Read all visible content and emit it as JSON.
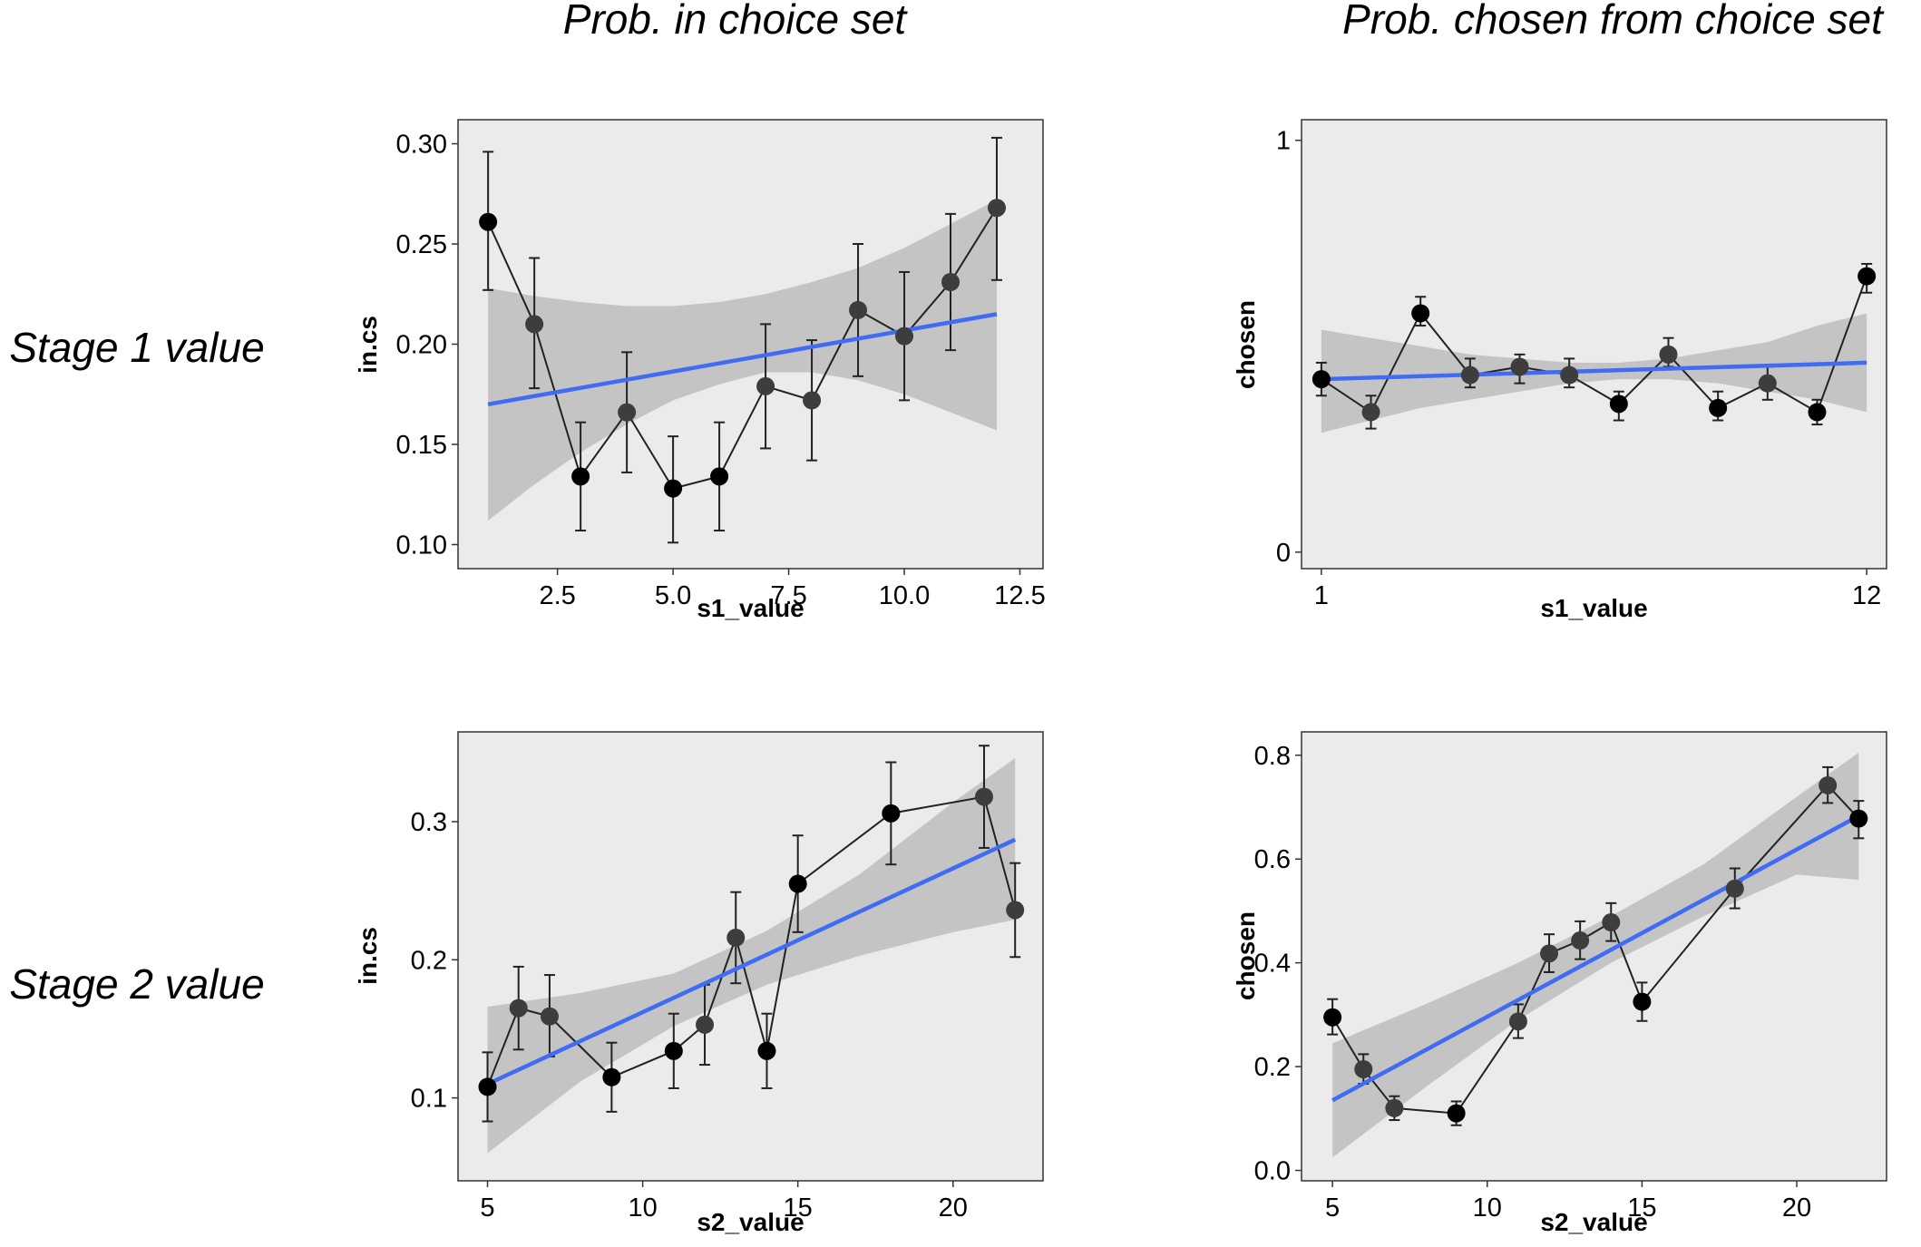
{
  "column_titles": [
    "Prob. in choice set",
    "Prob. chosen from choice set"
  ],
  "row_titles": [
    "Stage 1 value",
    "Stage 2 value"
  ],
  "chart_data": [
    {
      "type": "line",
      "xlabel": "s1_value",
      "ylabel": "in.cs",
      "xlim": [
        0.35,
        13.0
      ],
      "ylim": [
        0.088,
        0.312
      ],
      "xticks": [
        2.5,
        5.0,
        7.5,
        10.0,
        12.5
      ],
      "xtick_labels": [
        "2.5",
        "5.0",
        "7.5",
        "10.0",
        "12.5"
      ],
      "yticks": [
        0.1,
        0.15,
        0.2,
        0.25,
        0.3
      ],
      "ytick_labels": [
        "0.10",
        "0.15",
        "0.20",
        "0.25",
        "0.30"
      ],
      "x": [
        1,
        2,
        3,
        4,
        5,
        6,
        7,
        8,
        9,
        10,
        11,
        12
      ],
      "y": [
        0.261,
        0.21,
        0.134,
        0.166,
        0.128,
        0.134,
        0.179,
        0.172,
        0.217,
        0.204,
        0.231,
        0.268
      ],
      "err_low": [
        0.227,
        0.178,
        0.107,
        0.136,
        0.101,
        0.107,
        0.148,
        0.142,
        0.184,
        0.172,
        0.197,
        0.232
      ],
      "err_high": [
        0.296,
        0.243,
        0.161,
        0.196,
        0.154,
        0.161,
        0.21,
        0.202,
        0.25,
        0.236,
        0.265,
        0.303
      ],
      "point_colors": [
        "#000000",
        "#3d3d3d",
        "#000000",
        "#3d3d3d",
        "#000000",
        "#000000",
        "#3d3d3d",
        "#3d3d3d",
        "#3d3d3d",
        "#3d3d3d",
        "#3d3d3d",
        "#3d3d3d"
      ],
      "fit": {
        "x": [
          1,
          12
        ],
        "y": [
          0.17,
          0.215
        ]
      },
      "band": {
        "x": [
          1,
          2,
          3,
          4,
          5,
          6,
          7,
          8,
          9,
          10,
          11,
          12
        ],
        "low": [
          0.112,
          0.13,
          0.146,
          0.16,
          0.172,
          0.18,
          0.186,
          0.186,
          0.182,
          0.175,
          0.166,
          0.157
        ],
        "high": [
          0.228,
          0.224,
          0.221,
          0.219,
          0.219,
          0.221,
          0.225,
          0.231,
          0.238,
          0.248,
          0.26,
          0.272
        ]
      },
      "grid": false
    },
    {
      "type": "line",
      "xlabel": "s1_value",
      "ylabel": "chosen",
      "xlim": [
        0.6,
        12.4
      ],
      "ylim": [
        -0.04,
        1.05
      ],
      "xticks": [
        1,
        12
      ],
      "xtick_labels": [
        "1",
        "12"
      ],
      "yticks": [
        0,
        1
      ],
      "ytick_labels": [
        "0",
        "1"
      ],
      "x": [
        1,
        2,
        3,
        4,
        5,
        6,
        7,
        8,
        9,
        10,
        11,
        12
      ],
      "y": [
        0.42,
        0.34,
        0.58,
        0.43,
        0.45,
        0.43,
        0.36,
        0.48,
        0.35,
        0.41,
        0.34,
        0.67
      ],
      "err_low": [
        0.38,
        0.3,
        0.55,
        0.4,
        0.41,
        0.4,
        0.32,
        0.45,
        0.32,
        0.37,
        0.31,
        0.63
      ],
      "err_high": [
        0.46,
        0.38,
        0.62,
        0.47,
        0.48,
        0.47,
        0.39,
        0.52,
        0.39,
        0.45,
        0.37,
        0.7
      ],
      "point_colors": [
        "#000000",
        "#3d3d3d",
        "#000000",
        "#3d3d3d",
        "#3d3d3d",
        "#3d3d3d",
        "#000000",
        "#3d3d3d",
        "#000000",
        "#3d3d3d",
        "#000000",
        "#000000"
      ],
      "fit": {
        "x": [
          1,
          12
        ],
        "y": [
          0.42,
          0.46
        ]
      },
      "band": {
        "x": [
          1,
          2,
          3,
          4,
          5,
          6,
          7,
          8,
          9,
          10,
          11,
          12
        ],
        "low": [
          0.29,
          0.32,
          0.35,
          0.37,
          0.39,
          0.41,
          0.42,
          0.42,
          0.41,
          0.39,
          0.37,
          0.34
        ],
        "high": [
          0.54,
          0.52,
          0.5,
          0.48,
          0.47,
          0.46,
          0.46,
          0.47,
          0.49,
          0.51,
          0.55,
          0.58
        ]
      },
      "grid": false
    },
    {
      "type": "line",
      "xlabel": "s2_value",
      "ylabel": "in.cs",
      "xlim": [
        4.05,
        22.9
      ],
      "ylim": [
        0.04,
        0.365
      ],
      "xticks": [
        5,
        10,
        15,
        20
      ],
      "xtick_labels": [
        "5",
        "10",
        "15",
        "20"
      ],
      "yticks": [
        0.1,
        0.2,
        0.3
      ],
      "ytick_labels": [
        "0.1",
        "0.2",
        "0.3"
      ],
      "x": [
        5,
        6,
        7,
        9,
        11,
        12,
        13,
        14,
        15,
        18,
        21,
        22
      ],
      "y": [
        0.108,
        0.165,
        0.159,
        0.115,
        0.134,
        0.153,
        0.216,
        0.134,
        0.255,
        0.306,
        0.318,
        0.236
      ],
      "err_low": [
        0.083,
        0.135,
        0.13,
        0.09,
        0.107,
        0.124,
        0.183,
        0.107,
        0.22,
        0.269,
        0.281,
        0.202
      ],
      "err_high": [
        0.133,
        0.195,
        0.189,
        0.14,
        0.161,
        0.182,
        0.249,
        0.161,
        0.29,
        0.343,
        0.355,
        0.27
      ],
      "point_colors": [
        "#000000",
        "#3d3d3d",
        "#3d3d3d",
        "#000000",
        "#000000",
        "#3d3d3d",
        "#3d3d3d",
        "#000000",
        "#000000",
        "#000000",
        "#3d3d3d",
        "#3d3d3d"
      ],
      "fit": {
        "x": [
          5,
          22
        ],
        "y": [
          0.11,
          0.287
        ]
      },
      "band": {
        "x": [
          5,
          8,
          11,
          14,
          17,
          20,
          22
        ],
        "low": [
          0.06,
          0.112,
          0.152,
          0.182,
          0.203,
          0.22,
          0.229
        ],
        "high": [
          0.166,
          0.176,
          0.19,
          0.221,
          0.262,
          0.314,
          0.346
        ]
      },
      "grid": false
    },
    {
      "type": "line",
      "xlabel": "s2_value",
      "ylabel": "chosen",
      "xlim": [
        4.0,
        22.9
      ],
      "ylim": [
        -0.02,
        0.845
      ],
      "xticks": [
        5,
        10,
        15,
        20
      ],
      "xtick_labels": [
        "5",
        "10",
        "15",
        "20"
      ],
      "yticks": [
        0.0,
        0.2,
        0.4,
        0.6,
        0.8
      ],
      "ytick_labels": [
        "0.0",
        "0.2",
        "0.4",
        "0.6",
        "0.8"
      ],
      "x": [
        5,
        6,
        7,
        9,
        11,
        12,
        13,
        14,
        15,
        18,
        21,
        22
      ],
      "y": [
        0.295,
        0.195,
        0.12,
        0.11,
        0.287,
        0.418,
        0.443,
        0.478,
        0.325,
        0.543,
        0.742,
        0.678
      ],
      "err_low": [
        0.262,
        0.167,
        0.097,
        0.087,
        0.255,
        0.382,
        0.407,
        0.442,
        0.288,
        0.505,
        0.708,
        0.64
      ],
      "err_high": [
        0.33,
        0.224,
        0.143,
        0.133,
        0.32,
        0.455,
        0.48,
        0.515,
        0.362,
        0.582,
        0.777,
        0.712
      ],
      "point_colors": [
        "#000000",
        "#3d3d3d",
        "#3d3d3d",
        "#000000",
        "#3d3d3d",
        "#3d3d3d",
        "#3d3d3d",
        "#3d3d3d",
        "#000000",
        "#3d3d3d",
        "#3d3d3d",
        "#000000"
      ],
      "fit": {
        "x": [
          5,
          22
        ],
        "y": [
          0.135,
          0.683
        ]
      },
      "band": {
        "x": [
          5,
          8,
          11,
          14,
          17,
          20,
          22
        ],
        "low": [
          0.025,
          0.16,
          0.29,
          0.4,
          0.49,
          0.57,
          0.56
        ],
        "high": [
          0.245,
          0.32,
          0.4,
          0.49,
          0.59,
          0.72,
          0.805
        ]
      },
      "grid": false
    }
  ]
}
